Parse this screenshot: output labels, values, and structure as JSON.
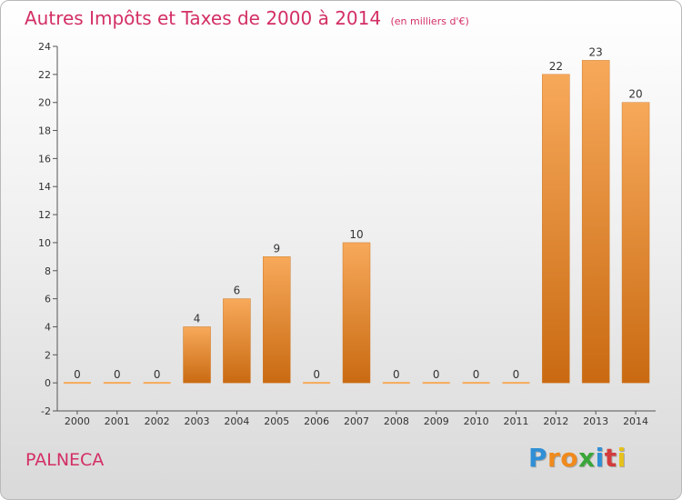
{
  "title": "Autres Impôts et Taxes de 2000 à 2014",
  "subtitle": "(en milliers d'€)",
  "commune": "PALNECA",
  "logo": {
    "letters": [
      "P",
      "r",
      "o",
      "x",
      "i",
      "t",
      "i"
    ],
    "colors": [
      "#2f8fd6",
      "#f08a1c",
      "#f08a1c",
      "#3aa63a",
      "#2f8fd6",
      "#d33b3b",
      "#e6c21a"
    ]
  },
  "colors": {
    "bar_top": "#f7a95a",
    "bar_bottom": "#c96a12",
    "accent": "#d32f63"
  },
  "chart_data": {
    "type": "bar",
    "categories": [
      "2000",
      "2001",
      "2002",
      "2003",
      "2004",
      "2005",
      "2006",
      "2007",
      "2008",
      "2009",
      "2010",
      "2011",
      "2012",
      "2013",
      "2014"
    ],
    "values": [
      0,
      0,
      0,
      4,
      6,
      9,
      0,
      10,
      0,
      0,
      0,
      0,
      22,
      23,
      20
    ],
    "ylim": [
      -2,
      24
    ],
    "yticks": [
      -2,
      0,
      2,
      4,
      6,
      8,
      10,
      12,
      14,
      16,
      18,
      20,
      22,
      24
    ],
    "grid": false,
    "data_labels": true
  }
}
